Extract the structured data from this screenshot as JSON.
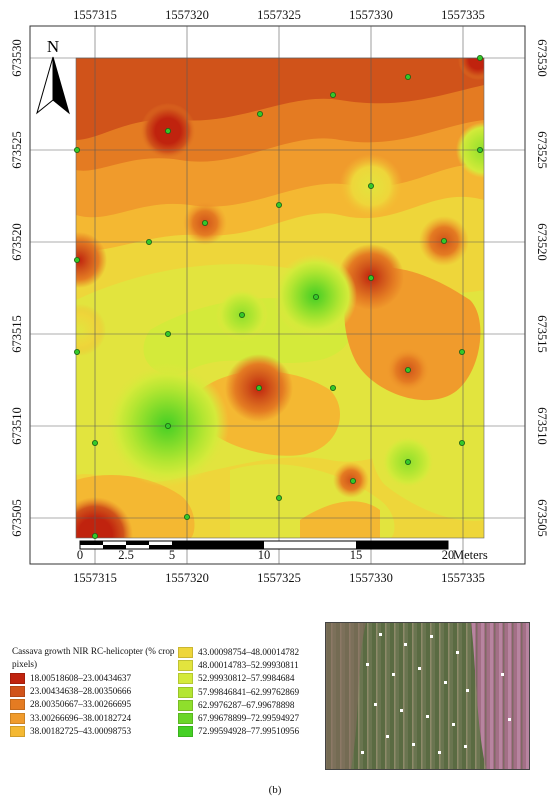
{
  "map": {
    "x_ticks": [
      "1557315",
      "1557320",
      "1557325",
      "1557330",
      "1557335"
    ],
    "y_ticks": [
      "673530",
      "673525",
      "673520",
      "673515",
      "673510",
      "673505"
    ],
    "north_label": "N",
    "scale_labels": [
      "0",
      "2.5",
      "5",
      "10",
      "15",
      "20"
    ],
    "scale_unit": "Meters",
    "sample_points_color": "#34c82a"
  },
  "legend": {
    "title": "Cassava growth NIR RC-helicopter (% crop pixels)",
    "classes": [
      {
        "label": "18.00518608–23.00434637",
        "color": "#c0230e"
      },
      {
        "label": "23.00434638–28.00350666",
        "color": "#d0531a"
      },
      {
        "label": "28.00350667–33.00266695",
        "color": "#e47b22"
      },
      {
        "label": "33.00266696–38.00182724",
        "color": "#f09b2c"
      },
      {
        "label": "38.00182725–43.00098753",
        "color": "#f4b832"
      },
      {
        "label": "43.00098754–48.00014782",
        "color": "#eed63a"
      },
      {
        "label": "48.00014783–52.99930811",
        "color": "#e2e43e"
      },
      {
        "label": "52.99930812–57.9984684",
        "color": "#d4ea3a"
      },
      {
        "label": "57.99846841–62.99762869",
        "color": "#b4e632"
      },
      {
        "label": "62.9976287–67.99678898",
        "color": "#8fdf2c"
      },
      {
        "label": "67.99678899–72.99594927",
        "color": "#6ad628"
      },
      {
        "label": "72.99594928–77.99510956",
        "color": "#45d024"
      }
    ]
  },
  "caption": "(b)"
}
